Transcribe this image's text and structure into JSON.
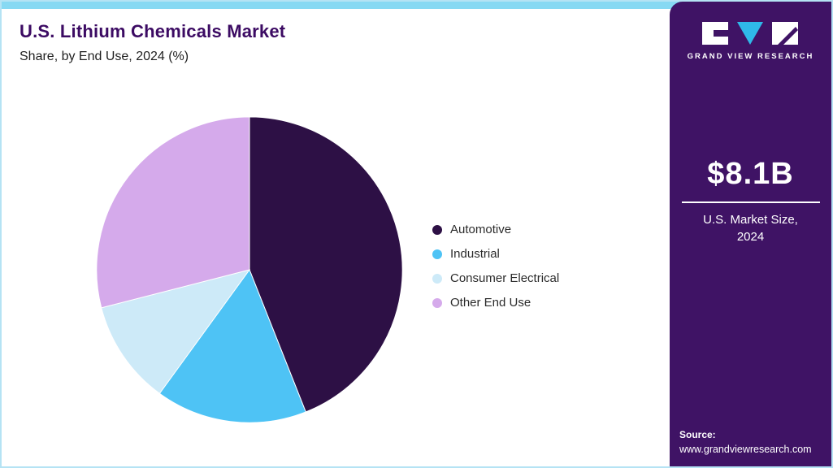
{
  "header": {
    "title": "U.S. Lithium Chemicals Market",
    "subtitle": "Share, by End Use, 2024 (%)"
  },
  "sidebar": {
    "logo_text": "GRAND VIEW RESEARCH",
    "market_size": "$8.1B",
    "market_size_label_line1": "U.S. Market Size,",
    "market_size_label_line2": "2024",
    "source_label": "Source:",
    "source_url": "www.grandviewresearch.com",
    "background_color": "#3f1365"
  },
  "theme": {
    "top_bar_color": "#87d9f3",
    "title_color": "#3c0b63",
    "border_color": "#b5e3f4",
    "logo_triangle_color": "#2fb9e9"
  },
  "chart_data": {
    "type": "pie",
    "title": "U.S. Lithium Chemicals Market Share, by End Use, 2024 (%)",
    "start_angle_deg": -90,
    "direction": "clockwise",
    "legend_position": "right",
    "segments": [
      {
        "label": "Automotive",
        "value": 44,
        "color": "#2d1045"
      },
      {
        "label": "Industrial",
        "value": 16,
        "color": "#4ec3f5"
      },
      {
        "label": "Consumer Electrical",
        "value": 11,
        "color": "#cdeaf8"
      },
      {
        "label": "Other End Use",
        "value": 29,
        "color": "#d5aaeb"
      }
    ]
  }
}
